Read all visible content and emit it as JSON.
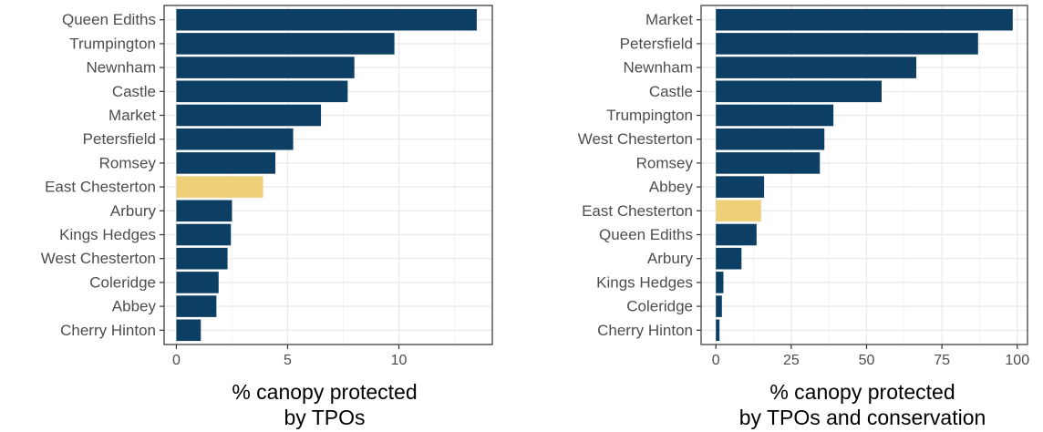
{
  "colors": {
    "bar": "#0d3e63",
    "highlight": "#f0cf79",
    "grid_major": "#ebebeb",
    "grid_minor": "#f5f5f5",
    "panel_border": "#333333",
    "text": "#4d4d4d"
  },
  "chart_data": [
    {
      "type": "bar",
      "orientation": "horizontal",
      "categories": [
        "Queen Ediths",
        "Trumpington",
        "Newnham",
        "Castle",
        "Market",
        "Petersfield",
        "Romsey",
        "East Chesterton",
        "Arbury",
        "Kings Hedges",
        "West Chesterton",
        "Coleridge",
        "Abbey",
        "Cherry Hinton"
      ],
      "values": [
        13.5,
        9.8,
        8.0,
        7.7,
        6.5,
        5.25,
        4.45,
        3.9,
        2.5,
        2.45,
        2.3,
        1.9,
        1.8,
        1.1
      ],
      "highlight": "East Chesterton",
      "xlabel": [
        "% canopy protected",
        "by TPOs"
      ],
      "xlim": [
        -0.55,
        14.2
      ],
      "xticks": [
        0,
        5,
        10
      ],
      "tick_labels": [
        "0",
        "5",
        "10"
      ],
      "grid": true
    },
    {
      "type": "bar",
      "orientation": "horizontal",
      "categories": [
        "Market",
        "Petersfield",
        "Newnham",
        "Castle",
        "Trumpington",
        "West Chesterton",
        "Romsey",
        "Abbey",
        "East Chesterton",
        "Queen Ediths",
        "Arbury",
        "Kings Hedges",
        "Coleridge",
        "Cherry Hinton"
      ],
      "values": [
        98.5,
        87,
        66.5,
        55,
        39,
        36,
        34.5,
        16,
        15,
        13.5,
        8.5,
        2.5,
        2,
        1.2
      ],
      "highlight": "East Chesterton",
      "xlabel": [
        "% canopy protected",
        "by TPOs and conservation"
      ],
      "xlim": [
        -4.9,
        103.4
      ],
      "xticks": [
        0,
        25,
        50,
        75,
        100
      ],
      "tick_labels": [
        "0",
        "25",
        "50",
        "75",
        "100"
      ],
      "grid": true
    }
  ]
}
